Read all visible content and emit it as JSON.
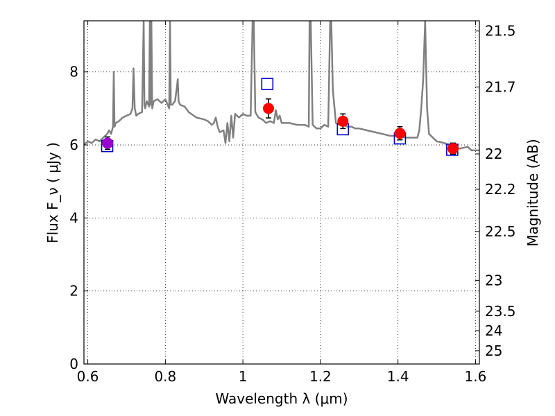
{
  "chart_data": {
    "type": "line",
    "title": "",
    "xlabel": "Wavelength  λ (μm)",
    "ylabel": "Flux  F_ν  ( μJy )",
    "ylabel_right": "Magnitude (AB)",
    "xlim": [
      0.59,
      1.61
    ],
    "ylim": [
      0,
      9.4
    ],
    "grid": true,
    "x_ticks": [
      {
        "value": 0.6,
        "label": "0.6"
      },
      {
        "value": 0.8,
        "label": "0.8"
      },
      {
        "value": 1.0,
        "label": "1"
      },
      {
        "value": 1.2,
        "label": "1.2"
      },
      {
        "value": 1.4,
        "label": "1.4"
      },
      {
        "value": 1.6,
        "label": "1.6"
      }
    ],
    "y_ticks": [
      {
        "value": 0,
        "label": "0"
      },
      {
        "value": 2,
        "label": "2"
      },
      {
        "value": 4,
        "label": "4"
      },
      {
        "value": 6,
        "label": "6"
      },
      {
        "value": 8,
        "label": "8"
      }
    ],
    "right_ticks": [
      {
        "mag": 21.5,
        "label": "21.5"
      },
      {
        "mag": 21.7,
        "label": "21.7"
      },
      {
        "mag": 22.0,
        "label": "22"
      },
      {
        "mag": 22.2,
        "label": "22.2"
      },
      {
        "mag": 22.5,
        "label": "22.5"
      },
      {
        "mag": 23.0,
        "label": "23"
      },
      {
        "mag": 23.5,
        "label": "23.5"
      },
      {
        "mag": 24.0,
        "label": "24"
      },
      {
        "mag": 25.0,
        "label": "25"
      }
    ],
    "series": [
      {
        "kind": "line",
        "color": "#808080",
        "x": [
          0.59,
          0.6,
          0.61,
          0.62,
          0.63,
          0.64,
          0.65,
          0.655,
          0.66,
          0.665,
          0.667,
          0.669,
          0.672,
          0.68,
          0.69,
          0.7,
          0.71,
          0.715,
          0.718,
          0.721,
          0.725,
          0.73,
          0.74,
          0.744,
          0.746,
          0.748,
          0.752,
          0.758,
          0.76,
          0.762,
          0.764,
          0.766,
          0.77,
          0.78,
          0.79,
          0.8,
          0.81,
          0.812,
          0.814,
          0.818,
          0.825,
          0.83,
          0.832,
          0.834,
          0.838,
          0.85,
          0.86,
          0.88,
          0.9,
          0.91,
          0.92,
          0.925,
          0.93,
          0.935,
          0.94,
          0.95,
          0.955,
          0.96,
          0.965,
          0.97,
          0.975,
          0.98,
          0.985,
          0.99,
          1.0,
          1.01,
          1.02,
          1.025,
          1.028,
          1.032,
          1.04,
          1.05,
          1.06,
          1.07,
          1.08,
          1.085,
          1.09,
          1.095,
          1.1,
          1.12,
          1.14,
          1.16,
          1.17,
          1.172,
          1.175,
          1.18,
          1.185,
          1.19,
          1.2,
          1.21,
          1.22,
          1.225,
          1.228,
          1.232,
          1.24,
          1.25,
          1.26,
          1.27,
          1.28,
          1.29,
          1.3,
          1.32,
          1.34,
          1.36,
          1.38,
          1.4,
          1.42,
          1.44,
          1.45,
          1.455,
          1.46,
          1.465,
          1.47,
          1.475,
          1.48,
          1.5,
          1.52,
          1.54,
          1.56,
          1.58,
          1.59,
          1.6,
          1.61
        ],
        "y": [
          6.0,
          6.1,
          6.05,
          6.15,
          6.1,
          6.2,
          6.3,
          6.4,
          6.3,
          6.5,
          8.0,
          6.5,
          6.6,
          6.65,
          6.75,
          6.8,
          6.85,
          7.0,
          8.1,
          7.0,
          6.8,
          6.85,
          6.9,
          9.4,
          7.1,
          7.0,
          7.2,
          7.05,
          9.4,
          7.1,
          9.4,
          7.0,
          7.2,
          7.25,
          7.15,
          7.25,
          7.0,
          9.4,
          7.1,
          7.1,
          7.2,
          7.6,
          7.8,
          7.2,
          7.1,
          7.05,
          6.9,
          6.75,
          6.7,
          6.65,
          6.55,
          6.6,
          6.75,
          6.5,
          6.35,
          6.4,
          6.05,
          6.6,
          6.1,
          6.8,
          6.2,
          6.85,
          6.8,
          6.75,
          6.85,
          6.8,
          6.8,
          9.4,
          9.4,
          6.9,
          6.75,
          6.7,
          6.6,
          6.65,
          6.6,
          6.95,
          6.7,
          6.8,
          6.6,
          6.6,
          6.55,
          6.55,
          6.5,
          9.4,
          9.4,
          6.55,
          6.5,
          6.45,
          6.45,
          6.55,
          6.5,
          9.4,
          9.4,
          7.5,
          6.6,
          6.55,
          6.55,
          6.5,
          6.5,
          6.45,
          6.45,
          6.4,
          6.35,
          6.3,
          6.25,
          6.25,
          6.2,
          6.2,
          6.2,
          6.4,
          7.0,
          7.8,
          9.4,
          7.0,
          6.3,
          6.1,
          6.05,
          5.95,
          5.9,
          5.95,
          5.85,
          5.85,
          5.85
        ]
      },
      {
        "kind": "points",
        "marker": "square-open",
        "color": "#0000cc",
        "x": [
          0.65,
          1.063,
          1.258,
          1.405,
          1.54
        ],
        "y": [
          5.97,
          7.67,
          6.43,
          6.18,
          5.87
        ]
      },
      {
        "kind": "points",
        "marker": "circle-filled-errorbar",
        "color": "#ff0000",
        "x": [
          1.066,
          1.258,
          1.405,
          1.542
        ],
        "y": [
          7.0,
          6.65,
          6.32,
          5.9
        ],
        "err": [
          0.26,
          0.2,
          0.18,
          0.15
        ]
      },
      {
        "kind": "points",
        "marker": "circle-filled-errorbar",
        "color": "#9900cc",
        "x": [
          0.651
        ],
        "y": [
          6.05
        ],
        "err": [
          0.17
        ]
      }
    ]
  }
}
